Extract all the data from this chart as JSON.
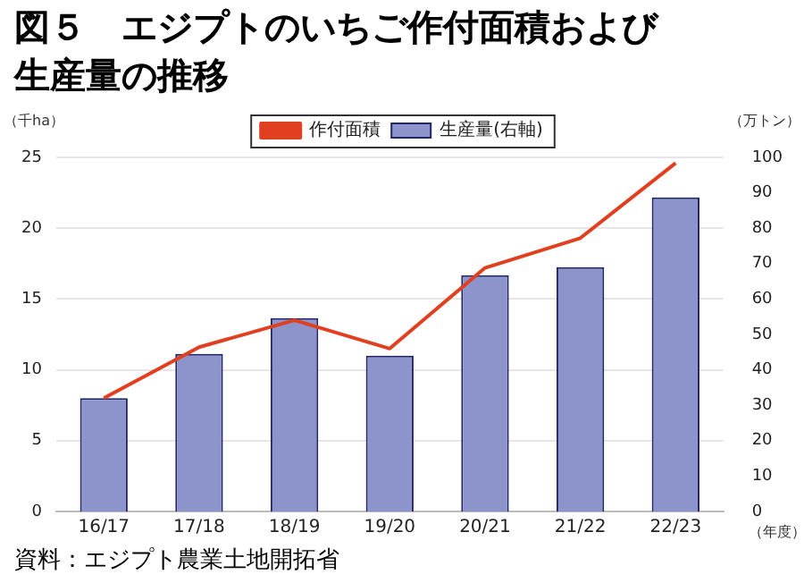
{
  "chart_data": {
    "type": "bar",
    "title": "図５　エジプトのいちご作付面積および生産量の推移",
    "categories": [
      "16/17",
      "17/18",
      "18/19",
      "19/20",
      "20/21",
      "21/22",
      "22/23"
    ],
    "series": [
      {
        "name": "生産量(右軸)",
        "axis": "y2",
        "color": "#8d94cc",
        "values": [
          32,
          44.5,
          54.6,
          44,
          66.7,
          69,
          88.7
        ]
      },
      {
        "name": "作付面積",
        "type": "line",
        "color": "#e0401f",
        "values": [
          8.0,
          11.6,
          13.5,
          11.5,
          17.2,
          19.3,
          24.6
        ]
      }
    ],
    "ylabel": "（千ha）",
    "y2label": "（万トン）",
    "xlabel": "（年度）",
    "ylim": [
      0,
      25
    ],
    "yticks": [
      0,
      5,
      10,
      15,
      20,
      25
    ],
    "y2lim": [
      0,
      100
    ],
    "y2ticks": [
      0,
      10,
      20,
      30,
      40,
      50,
      60,
      70,
      80,
      90,
      100
    ],
    "grid": "y",
    "legend": "top",
    "marker": "none",
    "annotations": [
      "資料：エジプト農業土地開拓省"
    ]
  }
}
